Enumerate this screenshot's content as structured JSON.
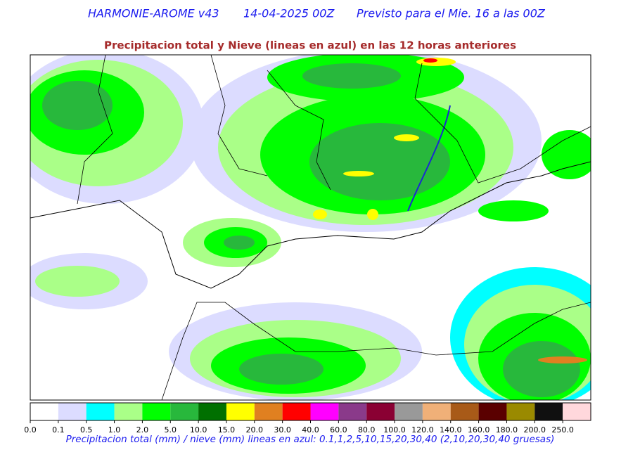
{
  "header": {
    "model": "HARMONIE-AROME v43",
    "run": "14-04-2025 00Z",
    "forecast": "Previsto para el Mie. 16 a las 00Z"
  },
  "subtitle": "Precipitacion total y Nieve (lineas en azul) en las 12 horas anteriores",
  "colorbar": {
    "colors": [
      "#ffffff",
      "#dcdcff",
      "#00ffff",
      "#aaff88",
      "#00ff00",
      "#28b83c",
      "#007000",
      "#ffff00",
      "#e08020",
      "#ff0000",
      "#ff00ff",
      "#8a3a8a",
      "#8a0033",
      "#999999",
      "#f0b078",
      "#a85a18",
      "#5a0000",
      "#9a8a00",
      "#101010",
      "#ffd8dc"
    ],
    "labels": [
      "0.0",
      "0.1",
      "0.5",
      "1.0",
      "2.0",
      "5.0",
      "10.0",
      "15.0",
      "20.0",
      "30.0",
      "40.0",
      "60.0",
      "80.0",
      "100.0",
      "120.0",
      "140.0",
      "160.0",
      "180.0",
      "200.0",
      "250.0"
    ]
  },
  "caption": "Precipitacion total (mm) / nieve (mm) lineas en azul: 0.1,1,2,5,10,15,20,30,40  (2,10,20,30,40 gruesas)"
}
